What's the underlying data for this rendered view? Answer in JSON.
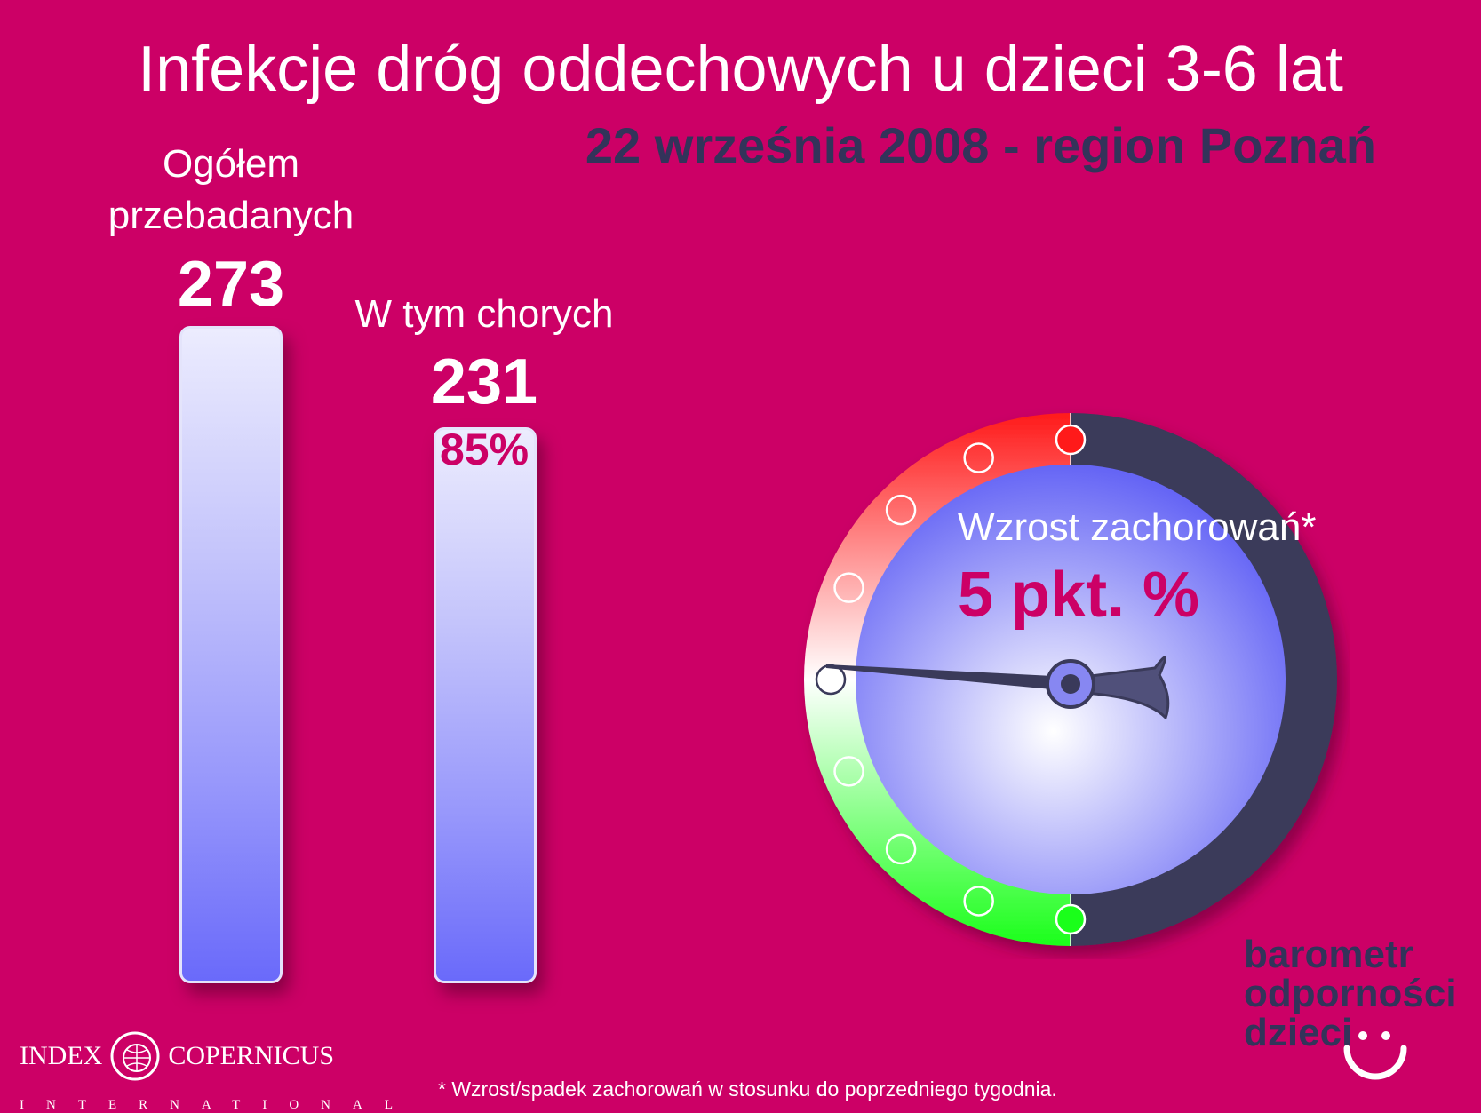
{
  "chart_data": [
    {
      "type": "bar",
      "title": "Infekcje dróg oddechowych u dzieci 3-6 lat",
      "subtitle": "22 września 2008 - region Poznań",
      "categories": [
        "Ogółem przebadanych",
        "W tym chorych"
      ],
      "values": [
        273,
        231
      ],
      "value_labels": [
        "273",
        "231"
      ],
      "percent_label": "85%",
      "percent_value": 85
    },
    {
      "type": "gauge",
      "label": "Wzrost zachorowań*",
      "value_label": "5 pkt. %",
      "value": 5,
      "needle_direction": "left"
    }
  ],
  "labels": {
    "total_line1": "Ogółem",
    "total_line2": "przebadanych",
    "sick": "W tym chorych"
  },
  "brand": {
    "line1": "barometr",
    "line2": "odporności",
    "line3": "dzieci"
  },
  "logo": {
    "left": "INDEX",
    "right": "COPERNICUS",
    "sub": "INTERNATIONAL"
  },
  "footnote": "* Wzrost/spadek zachorowań w stosunku do poprzedniego tygodnia.",
  "colors": {
    "background": "#cc0066",
    "subtitle": "#33335a",
    "bar_top": "#ececfe",
    "bar_bottom": "#6a6afa",
    "gauge_red": "#ff1a1a",
    "gauge_green": "#1aff1a",
    "gauge_dark": "#3a3a5a",
    "dial_center": "#ffffff",
    "dial_edge": "#6565f5",
    "accent": "#cc0066"
  }
}
